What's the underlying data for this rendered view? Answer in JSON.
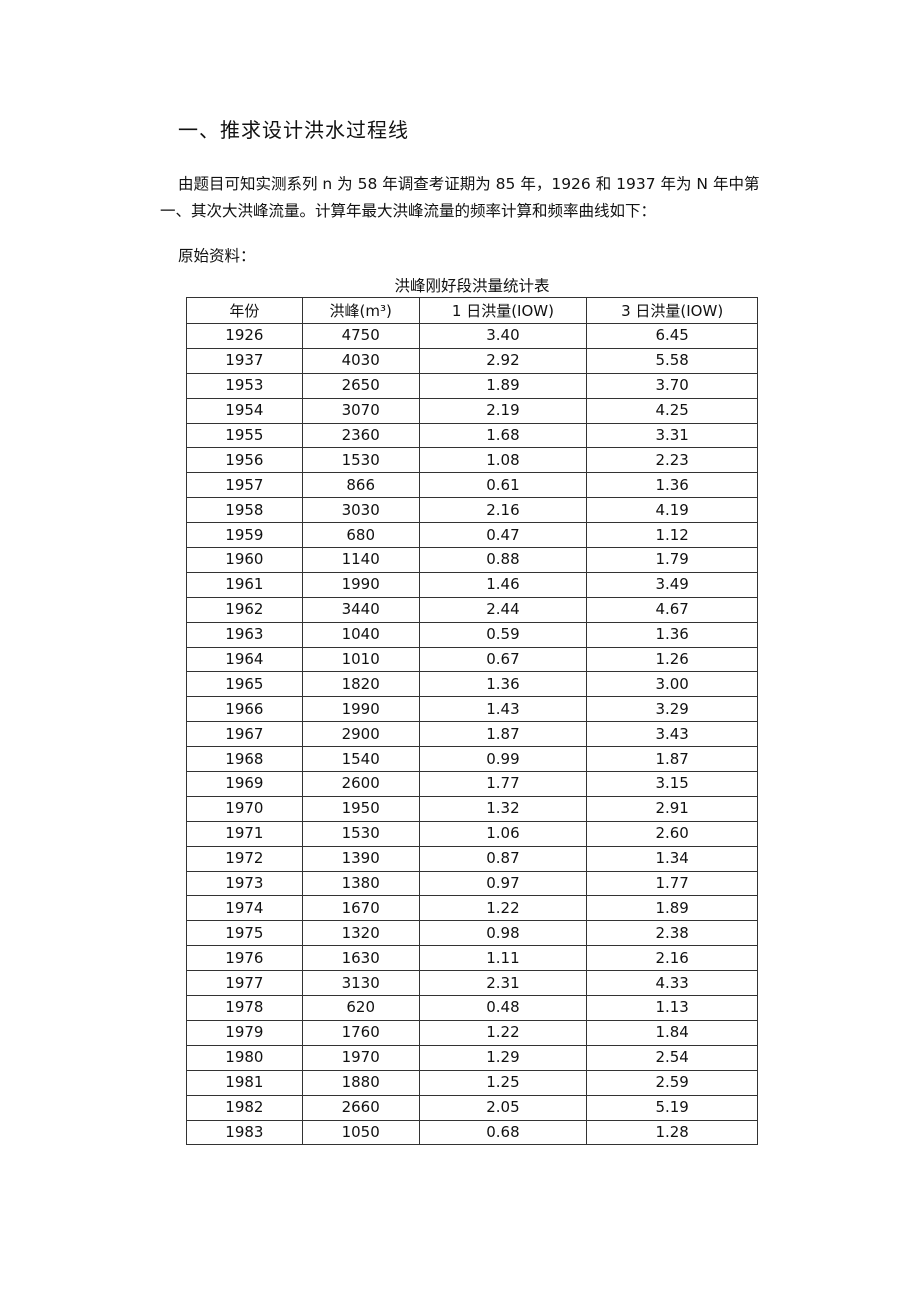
{
  "heading": "一、推求设计洪水过程线",
  "paragraph_line1": "由题目可知实测系列 n 为 58 年调查考证期为 85 年，1926 和 1937 年为 N 年中第",
  "paragraph_line2": "一、其次大洪峰流量。计算年最大洪峰流量的频率计算和频率曲线如下：",
  "source_label": "原始资料：",
  "table": {
    "caption": "洪峰刚好段洪量统计表",
    "headers": [
      "年份",
      "洪峰(m³)",
      "1 日洪量(IOW)",
      "3 日洪量(IOW)"
    ],
    "rows": [
      [
        "1926",
        "4750",
        "3.40",
        "6.45"
      ],
      [
        "1937",
        "4030",
        "2.92",
        "5.58"
      ],
      [
        "1953",
        "2650",
        "1.89",
        "3.70"
      ],
      [
        "1954",
        "3070",
        "2.19",
        "4.25"
      ],
      [
        "1955",
        "2360",
        "1.68",
        "3.31"
      ],
      [
        "1956",
        "1530",
        "1.08",
        "2.23"
      ],
      [
        "1957",
        "866",
        "0.61",
        "1.36"
      ],
      [
        "1958",
        "3030",
        "2.16",
        "4.19"
      ],
      [
        "1959",
        "680",
        "0.47",
        "1.12"
      ],
      [
        "1960",
        "1140",
        "0.88",
        "1.79"
      ],
      [
        "1961",
        "1990",
        "1.46",
        "3.49"
      ],
      [
        "1962",
        "3440",
        "2.44",
        "4.67"
      ],
      [
        "1963",
        "1040",
        "0.59",
        "1.36"
      ],
      [
        "1964",
        "1010",
        "0.67",
        "1.26"
      ],
      [
        "1965",
        "1820",
        "1.36",
        "3.00"
      ],
      [
        "1966",
        "1990",
        "1.43",
        "3.29"
      ],
      [
        "1967",
        "2900",
        "1.87",
        "3.43"
      ],
      [
        "1968",
        "1540",
        "0.99",
        "1.87"
      ],
      [
        "1969",
        "2600",
        "1.77",
        "3.15"
      ],
      [
        "1970",
        "1950",
        "1.32",
        "2.91"
      ],
      [
        "1971",
        "1530",
        "1.06",
        "2.60"
      ],
      [
        "1972",
        "1390",
        "0.87",
        "1.34"
      ],
      [
        "1973",
        "1380",
        "0.97",
        "1.77"
      ],
      [
        "1974",
        "1670",
        "1.22",
        "1.89"
      ],
      [
        "1975",
        "1320",
        "0.98",
        "2.38"
      ],
      [
        "1976",
        "1630",
        "1.11",
        "2.16"
      ],
      [
        "1977",
        "3130",
        "2.31",
        "4.33"
      ],
      [
        "1978",
        "620",
        "0.48",
        "1.13"
      ],
      [
        "1979",
        "1760",
        "1.22",
        "1.84"
      ],
      [
        "1980",
        "1970",
        "1.29",
        "2.54"
      ],
      [
        "1981",
        "1880",
        "1.25",
        "2.59"
      ],
      [
        "1982",
        "2660",
        "2.05",
        "5.19"
      ],
      [
        "1983",
        "1050",
        "0.68",
        "1.28"
      ]
    ]
  }
}
